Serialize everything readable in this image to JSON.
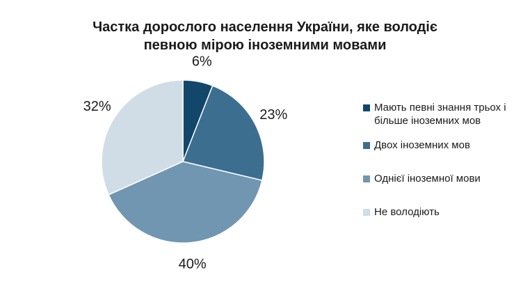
{
  "chart_data": {
    "type": "pie",
    "title": [
      "Частка дорослого населення України, яке володіє",
      "певною мірою іноземними мовами"
    ],
    "slices": [
      {
        "label": "Мають певні знання трьох і більше іноземних мов",
        "value": 6,
        "value_label": "6%",
        "color": "#12466a"
      },
      {
        "label": "Двох іноземних мов",
        "value": 23,
        "value_label": "23%",
        "color": "#3c6e90"
      },
      {
        "label": "Однієї іноземної мови",
        "value": 40,
        "value_label": "40%",
        "color": "#7096b1"
      },
      {
        "label": "Не володіють",
        "value": 32,
        "value_label": "32%",
        "color": "#d0dde7"
      }
    ],
    "legend_position": "right"
  }
}
